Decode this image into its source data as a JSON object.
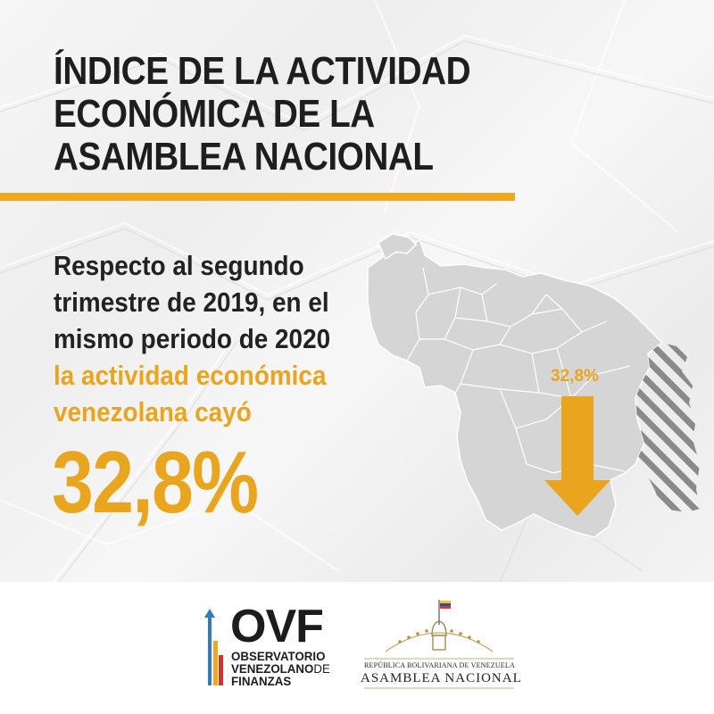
{
  "header": {
    "title_lines": [
      "ÍNDICE DE LA ACTIVIDAD",
      "ECONÓMICA DE LA",
      "ASAMBLEA NACIONAL"
    ]
  },
  "body": {
    "lines": [
      "Respecto al segundo",
      "trimestre de 2019, en el",
      "mismo periodo de 2020"
    ],
    "highlight_lines": [
      "la actividad económica",
      "venezolana cayó"
    ],
    "big_value": "32,8%"
  },
  "map": {
    "arrow_label": "32,8%",
    "arrow_direction": "down",
    "decline_percent": 32.8
  },
  "footer": {
    "ovf": {
      "acronym": "OVF",
      "line1": "OBSERVATORIO",
      "line2_bold": "VENEZOLANO",
      "line2_light": "DE",
      "line3": "FINANZAS"
    },
    "asamblea": {
      "subtitle": "REPÚBLICA BOLIVARIANA DE VENEZUELA",
      "title": "ASAMBLEA NACIONAL"
    }
  },
  "colors": {
    "accent": "#e9a51e",
    "text_dark": "#222222",
    "map_fill": "#d5d5d5",
    "map_stroke": "#ffffff",
    "hatch": "#8a8a8a",
    "ovf_blue": "#2f7cc0",
    "ovf_orange": "#f0a81f",
    "ovf_red": "#d2342b"
  }
}
